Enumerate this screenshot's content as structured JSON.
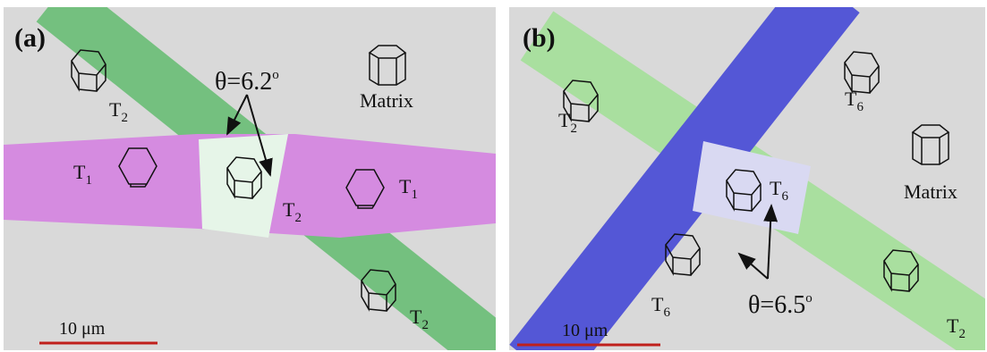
{
  "panels": [
    {
      "label": "(a)",
      "labels": [
        {
          "text": "T",
          "sub": "2"
        },
        {
          "text": "T",
          "sub": "1"
        },
        {
          "text": "T",
          "sub": "2"
        },
        {
          "text": "T",
          "sub": "1"
        },
        {
          "text": "T",
          "sub": "2"
        }
      ],
      "angle": {
        "text": "θ=6.2",
        "sup": "o"
      },
      "matrix": "Matrix",
      "scale_bar": "10 μm"
    },
    {
      "label": "(b)",
      "labels": [
        {
          "text": "T",
          "sub": "2"
        },
        {
          "text": "T",
          "sub": "6"
        },
        {
          "text": "T",
          "sub": "6"
        },
        {
          "text": "T",
          "sub": "6"
        },
        {
          "text": "T",
          "sub": "2"
        }
      ],
      "angle": {
        "text": "θ=6.5",
        "sup": "o"
      },
      "matrix": "Matrix",
      "scale_bar": "10 μm"
    }
  ]
}
